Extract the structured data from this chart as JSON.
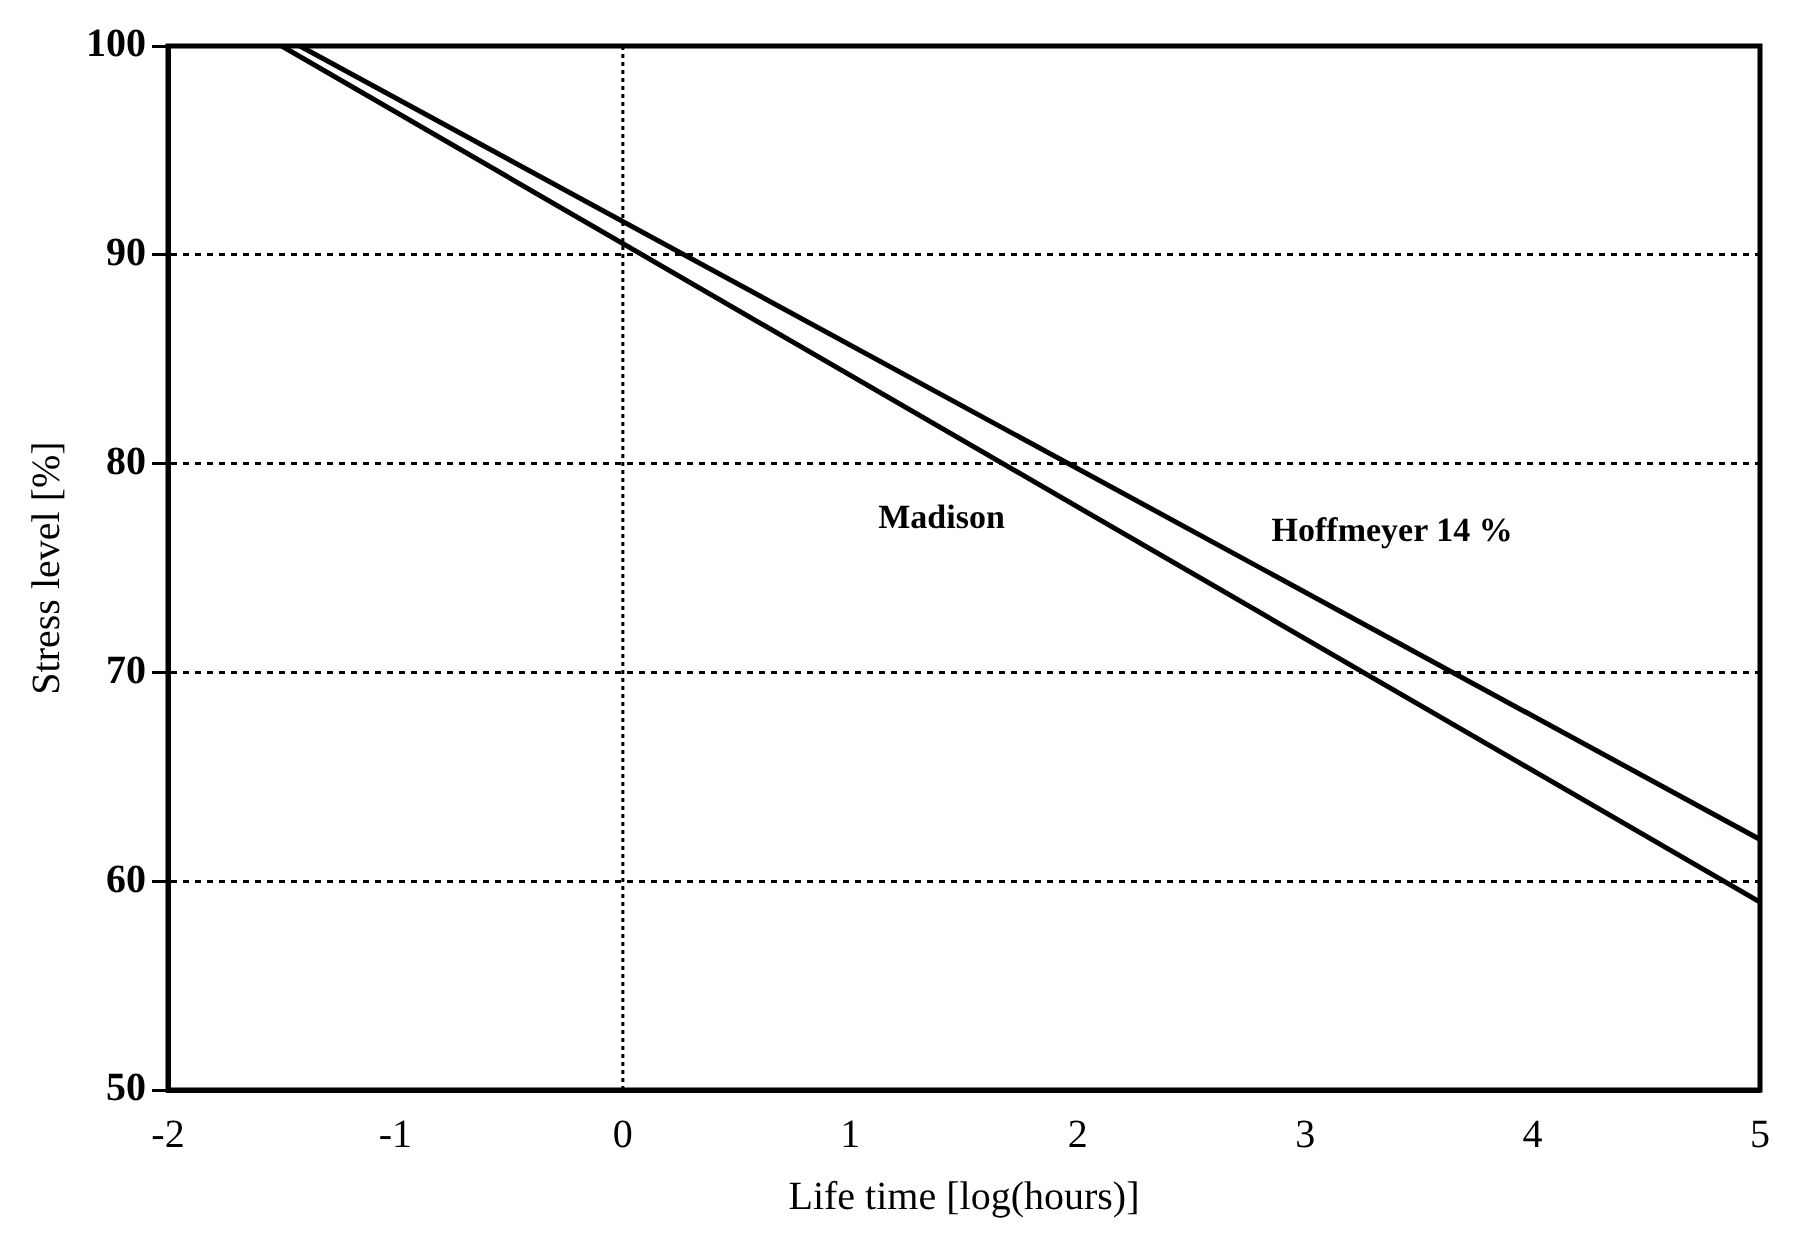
{
  "chart_data": {
    "type": "line",
    "xlabel": "Life time [log(hours)]",
    "ylabel": "Stress level [%]",
    "series": [
      {
        "name": "Hoffmeyer 14 %",
        "color": "#000000",
        "x": [
          -1.42,
          5
        ],
        "values": [
          100,
          62
        ]
      },
      {
        "name": "Madison",
        "color": "#000000",
        "x": [
          -1.5,
          5
        ],
        "values": [
          100,
          59
        ]
      }
    ],
    "xlim": [
      -2,
      5
    ],
    "xticks": [
      -2,
      -1,
      0,
      1,
      2,
      3,
      4,
      5
    ],
    "ylim": [
      50,
      100
    ],
    "yticks": [
      50,
      60,
      70,
      80,
      90,
      100
    ],
    "grid": "y",
    "ref_lines": [
      {
        "axis": "x",
        "value": 0,
        "line_style": "dotted"
      }
    ],
    "legend": false,
    "marker": "none",
    "line_style": "solid"
  }
}
